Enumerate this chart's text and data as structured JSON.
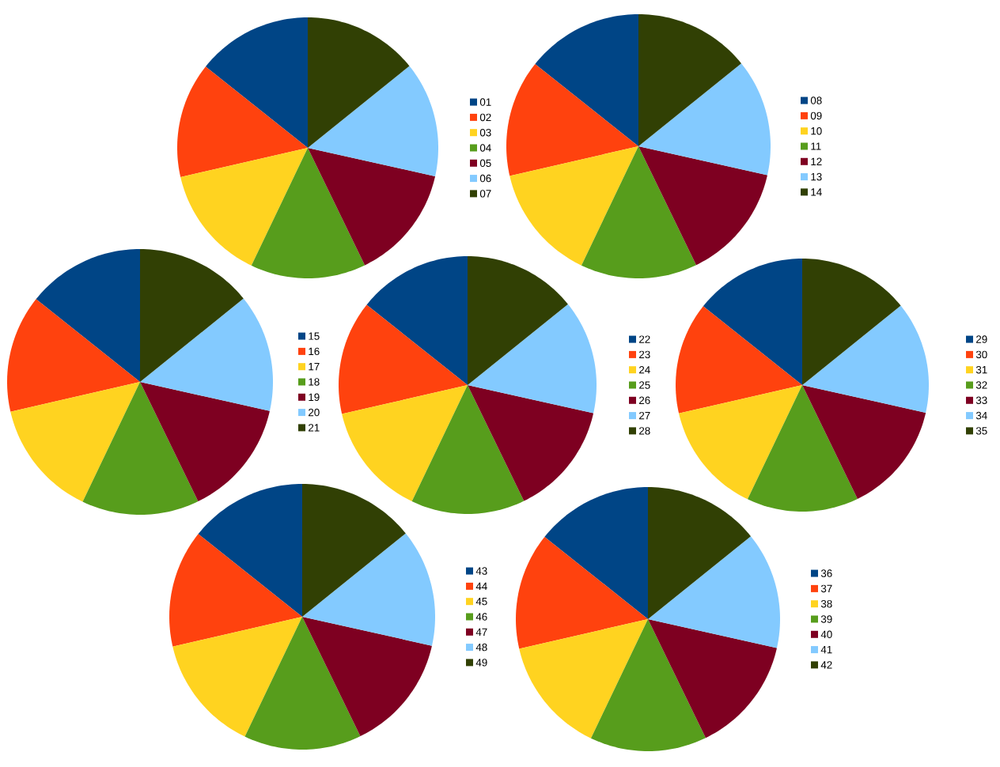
{
  "chart_data": [
    {
      "type": "pie",
      "categories": [
        "01",
        "02",
        "03",
        "04",
        "05",
        "06",
        "07"
      ],
      "values": [
        14.3,
        14.3,
        14.3,
        14.3,
        14.3,
        14.3,
        14.2
      ],
      "colors": [
        "#004586",
        "#ff420e",
        "#ffd320",
        "#579d1c",
        "#7e0021",
        "#83caff",
        "#314004"
      ],
      "legend": "right"
    },
    {
      "type": "pie",
      "categories": [
        "08",
        "09",
        "10",
        "11",
        "12",
        "13",
        "14"
      ],
      "values": [
        14.3,
        14.3,
        14.3,
        14.3,
        14.3,
        14.3,
        14.2
      ],
      "colors": [
        "#004586",
        "#ff420e",
        "#ffd320",
        "#579d1c",
        "#7e0021",
        "#83caff",
        "#314004"
      ],
      "legend": "right"
    },
    {
      "type": "pie",
      "categories": [
        "15",
        "16",
        "17",
        "18",
        "19",
        "20",
        "21"
      ],
      "values": [
        14.3,
        14.3,
        14.3,
        14.3,
        14.3,
        14.3,
        14.2
      ],
      "colors": [
        "#004586",
        "#ff420e",
        "#ffd320",
        "#579d1c",
        "#7e0021",
        "#83caff",
        "#314004"
      ],
      "legend": "right"
    },
    {
      "type": "pie",
      "categories": [
        "22",
        "23",
        "24",
        "25",
        "26",
        "27",
        "28"
      ],
      "values": [
        14.3,
        14.3,
        14.3,
        14.3,
        14.3,
        14.3,
        14.2
      ],
      "colors": [
        "#004586",
        "#ff420e",
        "#ffd320",
        "#579d1c",
        "#7e0021",
        "#83caff",
        "#314004"
      ],
      "legend": "right"
    },
    {
      "type": "pie",
      "categories": [
        "29",
        "30",
        "31",
        "32",
        "33",
        "34",
        "35"
      ],
      "values": [
        14.3,
        14.3,
        14.3,
        14.3,
        14.3,
        14.3,
        14.2
      ],
      "colors": [
        "#004586",
        "#ff420e",
        "#ffd320",
        "#579d1c",
        "#7e0021",
        "#83caff",
        "#314004"
      ],
      "legend": "right"
    },
    {
      "type": "pie",
      "categories": [
        "43",
        "44",
        "45",
        "46",
        "47",
        "48",
        "49"
      ],
      "values": [
        14.3,
        14.3,
        14.3,
        14.3,
        14.3,
        14.3,
        14.2
      ],
      "colors": [
        "#004586",
        "#ff420e",
        "#ffd320",
        "#579d1c",
        "#7e0021",
        "#83caff",
        "#314004"
      ],
      "legend": "right"
    },
    {
      "type": "pie",
      "categories": [
        "36",
        "37",
        "38",
        "39",
        "40",
        "41",
        "42"
      ],
      "values": [
        14.3,
        14.3,
        14.3,
        14.3,
        14.3,
        14.3,
        14.2
      ],
      "colors": [
        "#004586",
        "#ff420e",
        "#ffd320",
        "#579d1c",
        "#7e0021",
        "#83caff",
        "#314004"
      ],
      "legend": "right"
    }
  ]
}
